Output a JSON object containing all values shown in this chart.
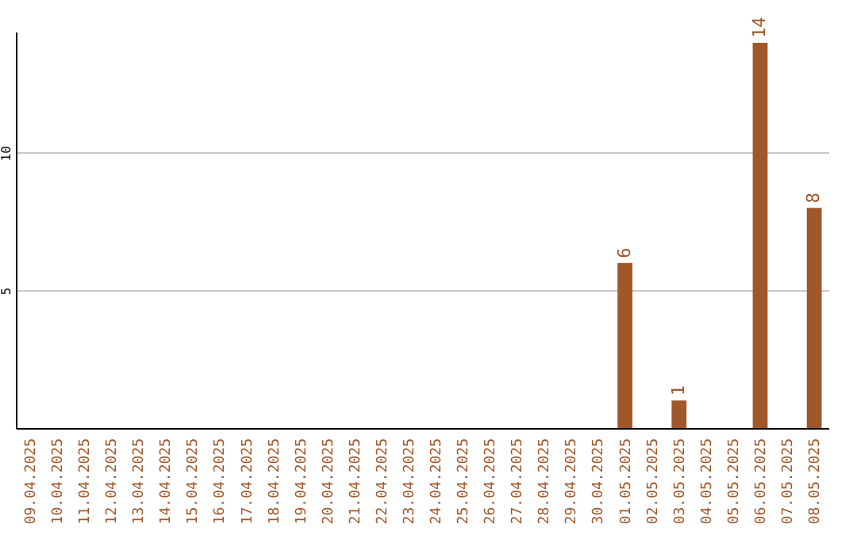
{
  "chart_data": {
    "type": "bar",
    "categories": [
      "09.04.2025",
      "10.04.2025",
      "11.04.2025",
      "12.04.2025",
      "13.04.2025",
      "14.04.2025",
      "15.04.2025",
      "16.04.2025",
      "17.04.2025",
      "18.04.2025",
      "19.04.2025",
      "20.04.2025",
      "21.04.2025",
      "22.04.2025",
      "23.04.2025",
      "24.04.2025",
      "25.04.2025",
      "26.04.2025",
      "27.04.2025",
      "28.04.2025",
      "29.04.2025",
      "30.04.2025",
      "01.05.2025",
      "02.05.2025",
      "03.05.2025",
      "04.05.2025",
      "05.05.2025",
      "06.05.2025",
      "07.05.2025",
      "08.05.2025"
    ],
    "values": [
      0,
      0,
      0,
      0,
      0,
      0,
      0,
      0,
      0,
      0,
      0,
      0,
      0,
      0,
      0,
      0,
      0,
      0,
      0,
      0,
      0,
      0,
      6,
      0,
      1,
      0,
      0,
      14,
      0,
      8
    ],
    "value_labels": [
      null,
      null,
      null,
      null,
      null,
      null,
      null,
      null,
      null,
      null,
      null,
      null,
      null,
      null,
      null,
      null,
      null,
      null,
      null,
      null,
      null,
      null,
      "6",
      null,
      "1",
      null,
      null,
      "14",
      null,
      "8"
    ],
    "color": "#a0572a",
    "ylim": [
      0,
      14.4
    ],
    "yticks": [
      5,
      10
    ],
    "grid": "y"
  }
}
